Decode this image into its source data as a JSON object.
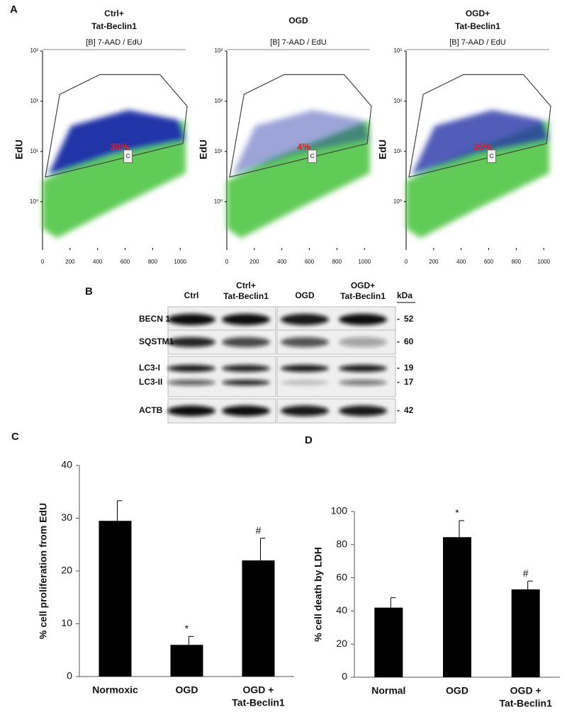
{
  "panel_labels": [
    "A",
    "B",
    "C",
    "D"
  ],
  "chart_data": [
    {
      "type": "flow",
      "title": [
        "Ctrl+",
        "Tat-Beclin1"
      ],
      "subtitle": "[B] 7-AAD / EdU",
      "y_label": "EdU",
      "gate_label": "C",
      "annotation": "30%",
      "xlim": [
        0,
        1040
      ],
      "xticks": [
        0,
        200,
        400,
        600,
        800,
        1000
      ],
      "ylog": true,
      "ylim": [
        0.12,
        1000
      ],
      "yticks": [
        {
          "value": 1,
          "label": "10⁰"
        },
        {
          "value": 10,
          "label": "10¹"
        },
        {
          "value": 100,
          "label": "10²"
        },
        {
          "value": 1000,
          "label": "10³"
        }
      ]
    },
    {
      "type": "flow",
      "title": [
        "OGD"
      ],
      "subtitle": "[B] 7-AAD / EdU",
      "y_label": "EdU",
      "gate_label": "C",
      "annotation": "4%",
      "xlim": [
        0,
        1040
      ],
      "xticks": [
        0,
        200,
        400,
        600,
        800,
        1000
      ],
      "ylog": true,
      "ylim": [
        0.12,
        1000
      ],
      "yticks": [
        {
          "value": 1,
          "label": "10⁰"
        },
        {
          "value": 10,
          "label": "10¹"
        },
        {
          "value": 100,
          "label": "10²"
        },
        {
          "value": 1000,
          "label": "10³"
        }
      ]
    },
    {
      "type": "flow",
      "title": [
        "OGD+",
        "Tat-Beclin1"
      ],
      "subtitle": "[B] 7-AAD / EdU",
      "y_label": "EdU",
      "gate_label": "C",
      "annotation": "20%",
      "xlim": [
        0,
        1040
      ],
      "xticks": [
        0,
        200,
        400,
        600,
        800,
        1000
      ],
      "ylog": true,
      "ylim": [
        0.12,
        1000
      ],
      "yticks": [
        {
          "value": 1,
          "label": "10⁰"
        },
        {
          "value": 10,
          "label": "10¹"
        },
        {
          "value": 100,
          "label": "10²"
        },
        {
          "value": 1000,
          "label": "10³"
        }
      ]
    },
    {
      "type": "bar",
      "y_label": "% cell proliferation from EdU",
      "categories": [
        "Normoxic",
        "OGD",
        [
          "OGD +",
          "Tat-Beclin1"
        ]
      ],
      "values": [
        29.5,
        6,
        22
      ],
      "errors": [
        3.8,
        1.6,
        4.2
      ],
      "annotations": [
        null,
        "*",
        "#"
      ],
      "color": "#000000",
      "ylim": [
        0,
        40
      ],
      "yticks": [
        0,
        10,
        20,
        30,
        40
      ]
    },
    {
      "type": "bar",
      "y_label": "% cell death by LDH",
      "categories": [
        "Normal",
        "OGD",
        [
          "OGD +",
          "Tat-Beclin1"
        ]
      ],
      "values": [
        42,
        84.5,
        53
      ],
      "errors": [
        6,
        10,
        5
      ],
      "annotations": [
        null,
        "*",
        "#"
      ],
      "color": "#000000",
      "ylim": [
        0,
        100
      ],
      "yticks": [
        0,
        20,
        40,
        60,
        80,
        100
      ]
    }
  ],
  "blot": {
    "columns": [
      "Ctrl",
      [
        "Ctrl+",
        "Tat-Beclin1"
      ],
      "OGD",
      [
        "OGD+",
        "Tat-Beclin1"
      ]
    ],
    "unit": "kDa",
    "rows": [
      {
        "label": "BECN 1",
        "kda": 52
      },
      {
        "label": "SQSTM1",
        "kda": 60
      },
      {
        "label": "LC3-I",
        "kda": 19
      },
      {
        "label": "LC3-II",
        "kda": 17
      },
      {
        "label": "ACTB",
        "kda": 42
      }
    ]
  }
}
